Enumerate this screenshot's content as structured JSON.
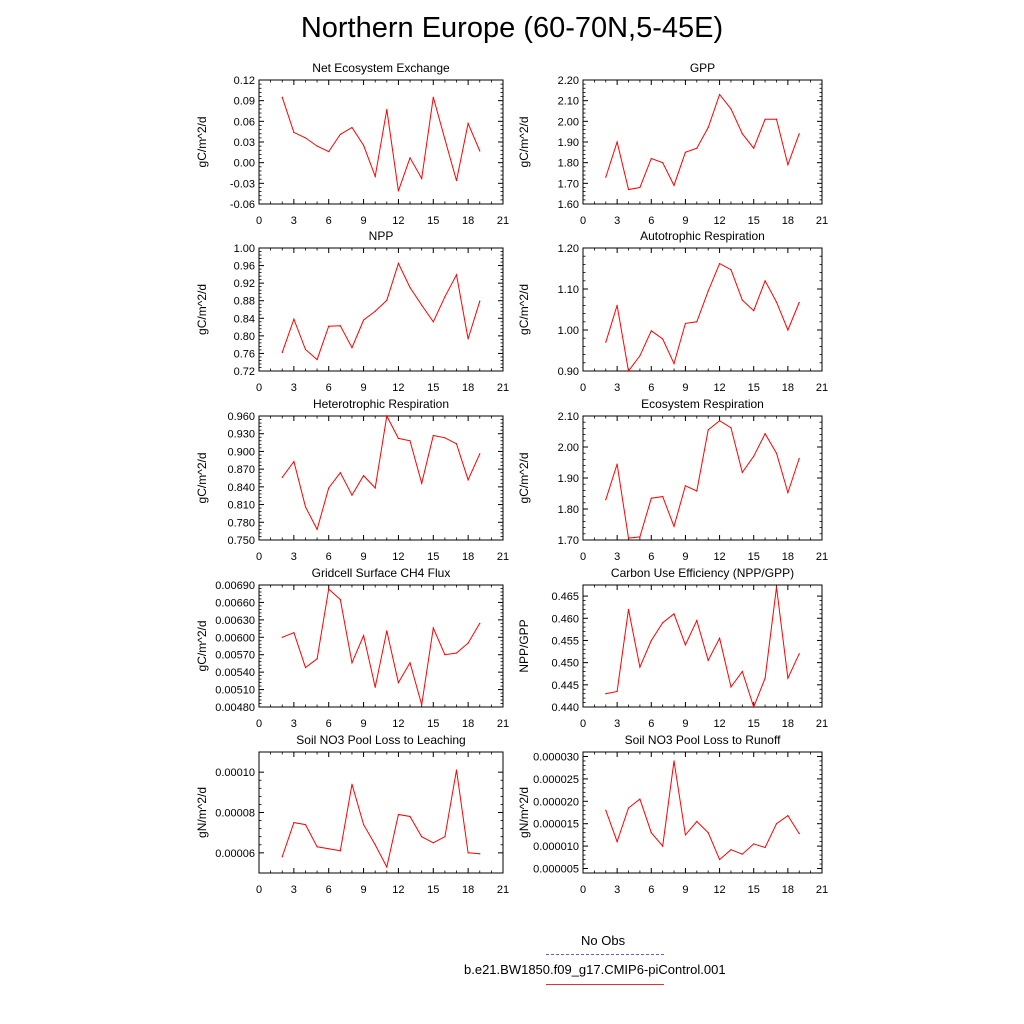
{
  "page": {
    "title": "Northern Europe (60-70N,5-45E)"
  },
  "legend": {
    "items": [
      {
        "label": "No Obs",
        "color": "#6060c0",
        "style": "dashed"
      },
      {
        "label": "b.e21.BW1850.f09_g17.CMIP6-piControl.001",
        "color": "#e03030",
        "style": "solid"
      }
    ]
  },
  "chart_data": [
    {
      "type": "line",
      "title": "Net Ecosystem Exchange",
      "ylabel": "gC/m^2/d",
      "xlim": [
        0,
        21
      ],
      "ylim": [
        -0.06,
        0.12
      ],
      "xticks": [
        0,
        3,
        6,
        9,
        12,
        15,
        18,
        21
      ],
      "yticks": [
        "-0.06",
        "-0.03",
        "0.00",
        "0.03",
        "0.06",
        "0.09",
        "0.12"
      ],
      "series_color": "#ff0000",
      "x": [
        2,
        3,
        4,
        5,
        6,
        7,
        8,
        9,
        10,
        11,
        12,
        13,
        14,
        15,
        16,
        17,
        18,
        19
      ],
      "y": [
        0.095,
        0.044,
        0.036,
        0.024,
        0.016,
        0.041,
        0.051,
        0.025,
        -0.02,
        0.077,
        -0.041,
        0.007,
        -0.023,
        0.095,
        0.034,
        -0.026,
        0.057,
        0.017
      ]
    },
    {
      "type": "line",
      "title": "GPP",
      "ylabel": "gC/m^2/d",
      "xlim": [
        0,
        21
      ],
      "ylim": [
        1.6,
        2.2
      ],
      "xticks": [
        0,
        3,
        6,
        9,
        12,
        15,
        18,
        21
      ],
      "yticks": [
        "1.60",
        "1.70",
        "1.80",
        "1.90",
        "2.00",
        "2.10",
        "2.20"
      ],
      "series_color": "#ff0000",
      "x": [
        2,
        3,
        4,
        5,
        6,
        7,
        8,
        9,
        10,
        11,
        12,
        13,
        14,
        15,
        16,
        17,
        18,
        19
      ],
      "y": [
        1.73,
        1.9,
        1.67,
        1.68,
        1.82,
        1.8,
        1.69,
        1.85,
        1.87,
        1.97,
        2.13,
        2.06,
        1.94,
        1.87,
        2.01,
        2.01,
        1.79,
        1.94
      ]
    },
    {
      "type": "line",
      "title": "NPP",
      "ylabel": "gC/m^2/d",
      "xlim": [
        0,
        21
      ],
      "ylim": [
        0.72,
        1.0
      ],
      "xticks": [
        0,
        3,
        6,
        9,
        12,
        15,
        18,
        21
      ],
      "yticks": [
        "0.72",
        "0.76",
        "0.80",
        "0.84",
        "0.88",
        "0.92",
        "0.96",
        "1.00"
      ],
      "series_color": "#ff0000",
      "x": [
        2,
        3,
        4,
        5,
        6,
        7,
        8,
        9,
        10,
        11,
        12,
        13,
        14,
        15,
        16,
        17,
        18,
        19
      ],
      "y": [
        0.762,
        0.838,
        0.769,
        0.746,
        0.822,
        0.823,
        0.773,
        0.836,
        0.856,
        0.881,
        0.965,
        0.91,
        0.87,
        0.832,
        0.889,
        0.939,
        0.793,
        0.879
      ]
    },
    {
      "type": "line",
      "title": "Autotrophic Respiration",
      "ylabel": "gC/m^2/d",
      "xlim": [
        0,
        21
      ],
      "ylim": [
        0.9,
        1.2
      ],
      "xticks": [
        0,
        3,
        6,
        9,
        12,
        15,
        18,
        21
      ],
      "yticks": [
        "0.90",
        "1.00",
        "1.10",
        "1.20"
      ],
      "series_color": "#ff0000",
      "x": [
        2,
        3,
        4,
        5,
        6,
        7,
        8,
        9,
        10,
        11,
        12,
        13,
        14,
        15,
        16,
        17,
        18,
        19
      ],
      "y": [
        0.97,
        1.06,
        0.9,
        0.937,
        0.998,
        0.978,
        0.918,
        1.016,
        1.02,
        1.095,
        1.162,
        1.147,
        1.073,
        1.047,
        1.12,
        1.068,
        1.0,
        1.067
      ]
    },
    {
      "type": "line",
      "title": "Heterotrophic Respiration",
      "ylabel": "gC/m^2/d",
      "xlim": [
        0,
        21
      ],
      "ylim": [
        0.75,
        0.96
      ],
      "xticks": [
        0,
        3,
        6,
        9,
        12,
        15,
        18,
        21
      ],
      "yticks": [
        "0.750",
        "0.780",
        "0.810",
        "0.840",
        "0.870",
        "0.900",
        "0.930",
        "0.960"
      ],
      "series_color": "#ff0000",
      "x": [
        2,
        3,
        4,
        5,
        6,
        7,
        8,
        9,
        10,
        11,
        12,
        13,
        14,
        15,
        16,
        17,
        18,
        19
      ],
      "y": [
        0.856,
        0.883,
        0.806,
        0.768,
        0.838,
        0.864,
        0.826,
        0.859,
        0.838,
        0.96,
        0.922,
        0.918,
        0.846,
        0.927,
        0.923,
        0.913,
        0.852,
        0.896
      ]
    },
    {
      "type": "line",
      "title": "Ecosystem Respiration",
      "ylabel": "gC/m^2/d",
      "xlim": [
        0,
        21
      ],
      "ylim": [
        1.7,
        2.1
      ],
      "xticks": [
        0,
        3,
        6,
        9,
        12,
        15,
        18,
        21
      ],
      "yticks": [
        "1.70",
        "1.80",
        "1.90",
        "2.00",
        "2.10"
      ],
      "series_color": "#ff0000",
      "x": [
        2,
        3,
        4,
        5,
        6,
        7,
        8,
        9,
        10,
        11,
        12,
        13,
        14,
        15,
        16,
        17,
        18,
        19
      ],
      "y": [
        1.83,
        1.945,
        1.706,
        1.71,
        1.835,
        1.84,
        1.744,
        1.875,
        1.858,
        2.055,
        2.085,
        2.062,
        1.918,
        1.97,
        2.043,
        1.98,
        1.853,
        1.963
      ]
    },
    {
      "type": "line",
      "title": "Gridcell Surface CH4 Flux",
      "ylabel": "gC/m^2/d",
      "xlim": [
        0,
        21
      ],
      "ylim": [
        0.0048,
        0.0069
      ],
      "xticks": [
        0,
        3,
        6,
        9,
        12,
        15,
        18,
        21
      ],
      "yticks": [
        "0.00480",
        "0.00510",
        "0.00540",
        "0.00570",
        "0.00600",
        "0.00630",
        "0.00660",
        "0.00690"
      ],
      "series_color": "#ff0000",
      "x": [
        2,
        3,
        4,
        5,
        6,
        7,
        8,
        9,
        10,
        11,
        12,
        13,
        14,
        15,
        16,
        17,
        18,
        19
      ],
      "y": [
        0.006,
        0.00608,
        0.00548,
        0.00563,
        0.00683,
        0.00665,
        0.00556,
        0.00603,
        0.00514,
        0.00611,
        0.00522,
        0.00556,
        0.00484,
        0.00616,
        0.0057,
        0.00573,
        0.0059,
        0.00624
      ]
    },
    {
      "type": "line",
      "title": "Carbon Use Efficiency (NPP/GPP)",
      "ylabel": "NPP/GPP",
      "xlim": [
        0,
        21
      ],
      "ylim": [
        0.44,
        0.4675
      ],
      "xticks": [
        0,
        3,
        6,
        9,
        12,
        15,
        18,
        21
      ],
      "yticks": [
        "0.440",
        "0.445",
        "0.450",
        "0.455",
        "0.460",
        "0.465"
      ],
      "series_color": "#ff0000",
      "x": [
        2,
        3,
        4,
        5,
        6,
        7,
        8,
        9,
        10,
        11,
        12,
        13,
        14,
        15,
        16,
        17,
        18,
        19
      ],
      "y": [
        0.443,
        0.4435,
        0.462,
        0.449,
        0.455,
        0.459,
        0.461,
        0.454,
        0.4595,
        0.4505,
        0.4555,
        0.4445,
        0.448,
        0.44,
        0.4465,
        0.467,
        0.4465,
        0.452
      ]
    },
    {
      "type": "line",
      "title": "Soil NO3 Pool Loss to Leaching",
      "ylabel": "gN/m^2/d",
      "xlim": [
        0,
        21
      ],
      "ylim": [
        5e-05,
        0.00011
      ],
      "xticks": [
        0,
        3,
        6,
        9,
        12,
        15,
        18,
        21
      ],
      "yticks": [
        "0.00006",
        "0.00008",
        "0.00010"
      ],
      "ytick_values": [
        6e-05,
        8e-05,
        0.0001
      ],
      "series_color": "#ff0000",
      "x": [
        2,
        3,
        4,
        5,
        6,
        7,
        8,
        9,
        10,
        11,
        12,
        13,
        14,
        15,
        16,
        17,
        18,
        19
      ],
      "y": [
        5.8e-05,
        7.5e-05,
        7.4e-05,
        6.3e-05,
        6.2e-05,
        6.1e-05,
        9.4e-05,
        7.4e-05,
        6.4e-05,
        5.3e-05,
        7.9e-05,
        7.8e-05,
        6.8e-05,
        6.5e-05,
        6.8e-05,
        0.000101,
        6e-05,
        5.95e-05
      ]
    },
    {
      "type": "line",
      "title": "Soil NO3 Pool Loss to Runoff",
      "ylabel": "gN/m^2/d",
      "xlim": [
        0,
        21
      ],
      "ylim": [
        4e-06,
        3.1e-05
      ],
      "xticks": [
        0,
        3,
        6,
        9,
        12,
        15,
        18,
        21
      ],
      "yticks": [
        "0.000005",
        "0.000010",
        "0.000015",
        "0.000020",
        "0.000025",
        "0.000030"
      ],
      "ytick_values": [
        5e-06,
        1e-05,
        1.5e-05,
        2e-05,
        2.5e-05,
        3e-05
      ],
      "series_color": "#ff0000",
      "x": [
        2,
        3,
        4,
        5,
        6,
        7,
        8,
        9,
        10,
        11,
        12,
        13,
        14,
        15,
        16,
        17,
        18,
        19
      ],
      "y": [
        1.8e-05,
        1.1e-05,
        1.85e-05,
        2.05e-05,
        1.3e-05,
        1e-05,
        2.9e-05,
        1.25e-05,
        1.55e-05,
        1.3e-05,
        7e-06,
        9.2e-06,
        8.2e-06,
        1.05e-05,
        9.7e-06,
        1.5e-05,
        1.68e-05,
        1.28e-05
      ]
    }
  ]
}
